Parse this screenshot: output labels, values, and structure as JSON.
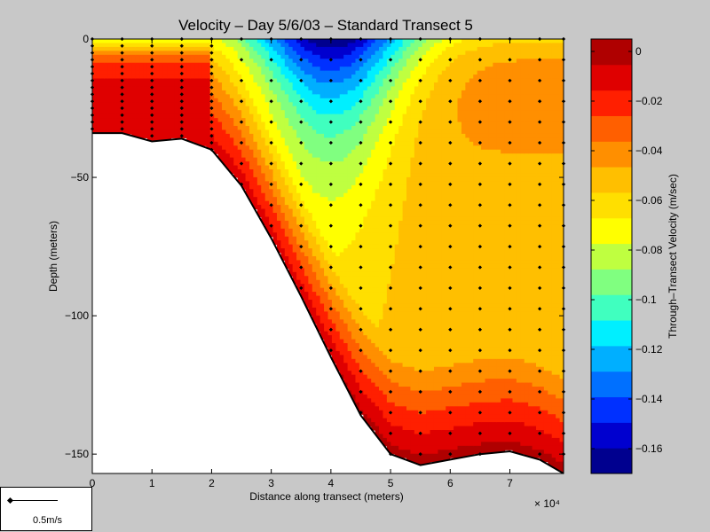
{
  "chart_data": {
    "type": "heatmap",
    "title": "Velocity – Day 5/6/03 – Standard Transect 5",
    "xlabel": "Distance along transect (meters)",
    "ylabel": "Depth (meters)",
    "x_multiplier": "× 10⁴",
    "xlim": [
      0,
      79000
    ],
    "ylim": [
      -157,
      0
    ],
    "xticks": [
      "0",
      "1",
      "2",
      "3",
      "4",
      "5",
      "6",
      "7"
    ],
    "yticks": [
      "0",
      "−50",
      "−100",
      "−150"
    ],
    "colorbar": {
      "label": "Through–Transect Velocity (m/sec)",
      "range": [
        -0.17,
        0.005
      ],
      "ticks": [
        "0",
        "−0.02",
        "−0.04",
        "−0.06",
        "−0.08",
        "−0.1",
        "−0.12",
        "−0.14",
        "−0.16"
      ],
      "tick_values": [
        0,
        -0.02,
        -0.04,
        -0.06,
        -0.08,
        -0.1,
        -0.12,
        -0.14,
        -0.16
      ],
      "colors": [
        "#00008f",
        "#0000cf",
        "#0030ff",
        "#0070ff",
        "#00afff",
        "#00efff",
        "#40ffbf",
        "#80ff80",
        "#bfff40",
        "#ffff00",
        "#ffdf00",
        "#ffbf00",
        "#ff8f00",
        "#ff5f00",
        "#ff1f00",
        "#df0000",
        "#af0000"
      ]
    },
    "bottom_profile": {
      "x": [
        0,
        5000,
        10000,
        15000,
        20000,
        25000,
        30000,
        35000,
        40000,
        45000,
        50000,
        55000,
        60000,
        65000,
        70000,
        75000,
        79000
      ],
      "depth": [
        -34,
        -34,
        -37,
        -36,
        -40,
        -53,
        -72,
        -93,
        -115,
        -136,
        -150,
        -154,
        -152,
        -150,
        -149,
        -152,
        -157
      ]
    },
    "stations_x": [
      0,
      5000,
      10000,
      15000,
      20000,
      25000,
      30000,
      35000,
      40000,
      45000,
      50000,
      55000,
      60000,
      65000,
      70000,
      75000,
      79000
    ]
  },
  "scale_legend": {
    "label": "0.5m/s"
  }
}
